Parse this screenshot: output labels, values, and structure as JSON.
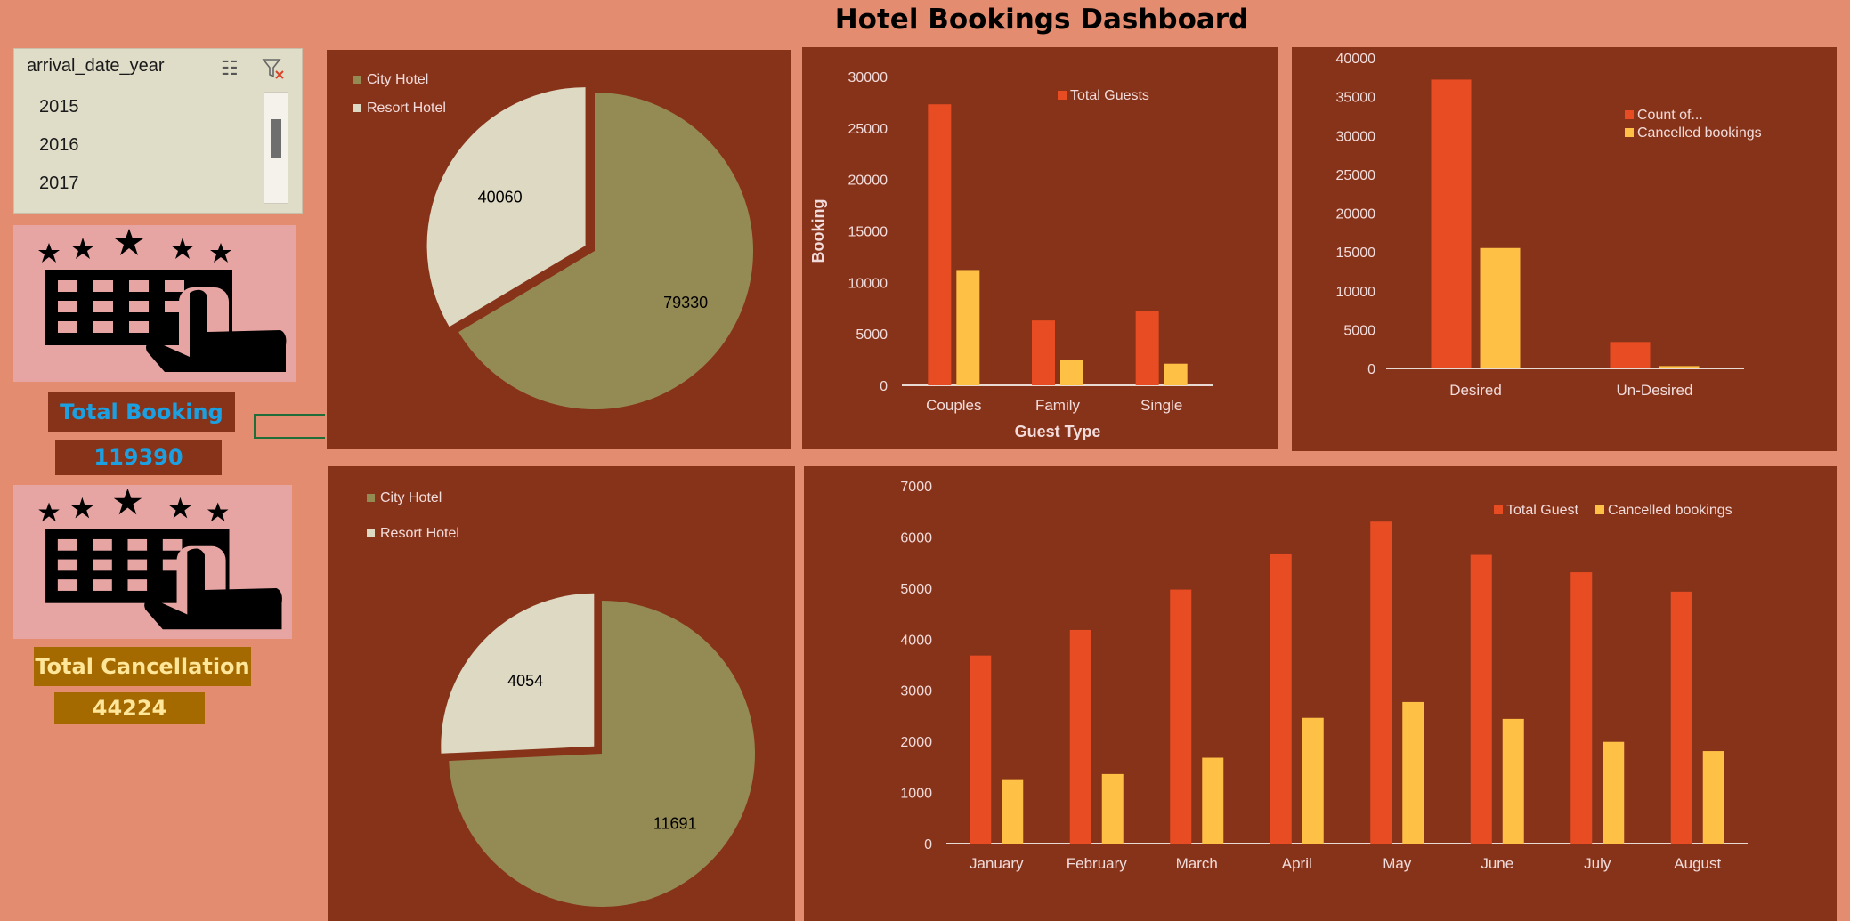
{
  "title": "Hotel Bookings Dashboard",
  "slicer": {
    "field": "arrival_date_year",
    "items": [
      "2015",
      "2016",
      "2017"
    ],
    "multi_select_icon": "multi-select-icon",
    "clear_filter_icon": "clear-filter-icon"
  },
  "kpis": {
    "total_booking": {
      "label": "Total Booking",
      "value": "119390",
      "color": "#1BA1E2"
    },
    "total_cancellation": {
      "label": "Total Cancellation",
      "value": "44224",
      "color": "#FFE699"
    }
  },
  "colors": {
    "background": "#E48C70",
    "panel": "#873319",
    "city_hotel": "#948A54",
    "resort_hotel": "#DDD9C3",
    "orange": "#E84C22",
    "yellow": "#FFC046",
    "text": "#F2DCDB"
  },
  "chart_data": [
    {
      "id": "bookings-pie",
      "type": "pie",
      "legend": [
        "City Hotel",
        "Resort Hotel"
      ],
      "legend_position": "top-left",
      "slices": [
        {
          "label": "City Hotel",
          "value": 79330
        },
        {
          "label": "Resort Hotel",
          "value": 40060
        }
      ]
    },
    {
      "id": "guest-type-bar",
      "type": "bar",
      "categories": [
        "Couples",
        "Family",
        "Single"
      ],
      "series": [
        {
          "name": "Total Guests",
          "values": [
            27300,
            6300,
            7200
          ]
        },
        {
          "name": "",
          "values": [
            11200,
            2500,
            2100
          ]
        }
      ],
      "legend": [
        "Total Guests"
      ],
      "legend_position": "top-right",
      "xlabel": "Guest Type",
      "ylabel": "Booking",
      "ylim": [
        0,
        30000
      ],
      "yticks": [
        0,
        5000,
        10000,
        15000,
        20000,
        25000,
        30000
      ]
    },
    {
      "id": "desired-bar",
      "type": "bar",
      "categories": [
        "Desired",
        "Un-Desired"
      ],
      "series": [
        {
          "name": "Count of...",
          "values": [
            37200,
            3400
          ]
        },
        {
          "name": "Cancelled bookings",
          "values": [
            15500,
            300
          ]
        }
      ],
      "legend_position": "top-right",
      "ylim": [
        0,
        40000
      ],
      "yticks": [
        0,
        5000,
        10000,
        15000,
        20000,
        25000,
        30000,
        35000,
        40000
      ]
    },
    {
      "id": "cancellation-pie",
      "type": "pie",
      "legend": [
        "City Hotel",
        "Resort Hotel"
      ],
      "legend_position": "top-left",
      "slices": [
        {
          "label": "City Hotel",
          "value": 11691
        },
        {
          "label": "Resort Hotel",
          "value": 4054
        }
      ]
    },
    {
      "id": "monthly-bar",
      "type": "bar",
      "categories": [
        "January",
        "February",
        "March",
        "April",
        "May",
        "June",
        "July",
        "August"
      ],
      "series": [
        {
          "name": "Total Guest",
          "values": [
            3680,
            4180,
            4970,
            5660,
            6300,
            5650,
            5310,
            4930
          ]
        },
        {
          "name": "Cancelled bookings",
          "values": [
            1260,
            1360,
            1680,
            2460,
            2770,
            2440,
            1990,
            1810
          ]
        }
      ],
      "legend_position": "top-right",
      "ylim": [
        0,
        7000
      ],
      "yticks": [
        0,
        1000,
        2000,
        3000,
        4000,
        5000,
        6000,
        7000
      ]
    }
  ]
}
